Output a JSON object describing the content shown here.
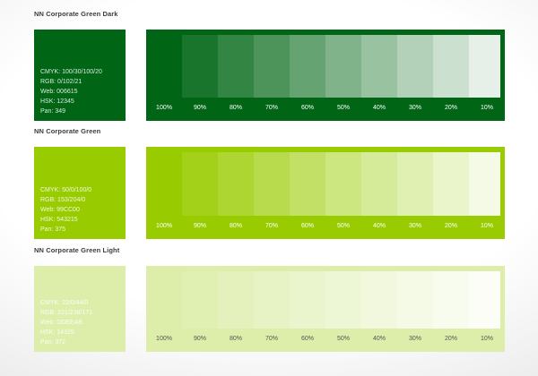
{
  "page": {
    "background": "#ffffff",
    "title_color": "#3c3c3c"
  },
  "percents": [
    "100%",
    "90%",
    "80%",
    "70%",
    "60%",
    "50%",
    "40%",
    "30%",
    "20%",
    "10%"
  ],
  "tint_levels": [
    90,
    80,
    70,
    60,
    50,
    40,
    30,
    20,
    10
  ],
  "rows": [
    {
      "title": "NN Corporate Green Dark",
      "hex": "#006615",
      "label_color": "#ffffff",
      "specs": {
        "cmyk": "CMYK: 100/30/100/20",
        "rgb": "RGB: 0/102/21",
        "web": "Web: 006615",
        "hsk": "HSK: 12345",
        "pan": "Pan: 349"
      }
    },
    {
      "title": "NN Corporate Green",
      "hex": "#99CC00",
      "label_color": "#ffffff",
      "specs": {
        "cmyk": "CMYK: 50/0/100/0",
        "rgb": "RGB: 153/204/0",
        "web": "Web: 99CC00",
        "hsk": "HSK: 543215",
        "pan": "Pan: 375"
      }
    },
    {
      "title": "NN Corporate Green Light",
      "hex": "#DDEEAB",
      "label_color": "#555555",
      "specs": {
        "cmyk": "CMYK: 22/0/44/0",
        "rgb": "RGB: 221/238/171",
        "web": "Web: DDEEAB",
        "hsk": "HSK: 14325",
        "pan": "Pan: 372"
      }
    }
  ]
}
